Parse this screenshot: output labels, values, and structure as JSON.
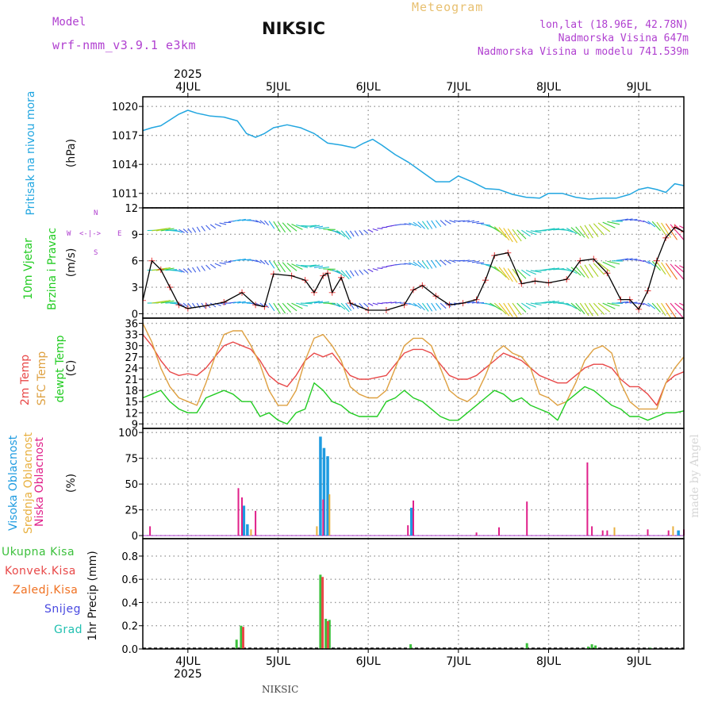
{
  "header": {
    "model_label": "Model",
    "model_name": "wrf-nmm_v3.9.1 e3km",
    "station": "NIKSIC",
    "meteogram_title": "Meteogram",
    "lonlat": "lon,lat (18.96E, 42.78N)",
    "elevation": "Nadmorska Visina 647m",
    "model_elevation": "Nadmorska Visina u modelu 741.539m",
    "footer_station": "NIKSIC",
    "watermark": "made by Angel"
  },
  "colors": {
    "pressure": "#22a6e0",
    "wind": "#22cc22",
    "temp2m": "#e84848",
    "sfc": "#dea040",
    "dewpt": "#22cc22",
    "cloud_high": "#1e9be0",
    "cloud_mid": "#e8b040",
    "cloud_low": "#e0208a",
    "precip_total": "#3cc03c",
    "precip_conv": "#e84848",
    "precip_frozen": "#f07020",
    "snow": "#4848e0",
    "hail": "#20c0b0",
    "model_purple": "#b040d0"
  },
  "time_axis": {
    "year": "2025",
    "day_labels": [
      "4JUL",
      "5JUL",
      "6JUL",
      "7JUL",
      "8JUL",
      "9JUL"
    ],
    "day_start": 3.5,
    "day_end": 9.5
  },
  "panels": {
    "pressure": {
      "title": "Pritisak na nivou mora",
      "unit": "(hPa)"
    },
    "wind": {
      "title1": "10m Vjetar",
      "title2": "Brzina i Pravac",
      "unit": "(m/s)",
      "compass": {
        "n": "N",
        "s": "S",
        "w": "W",
        "e": "E",
        "arrow": "<-|->"
      }
    },
    "temp": {
      "t2m": "2m Temp",
      "sfc": "SFC Temp",
      "dew": "dewpt Temp",
      "unit": "(C)"
    },
    "cloud": {
      "high": "Visoka Oblacnost",
      "mid": "Srednja Oblacnost",
      "low": "Niska Oblacnost",
      "unit": "(%)"
    },
    "precip": {
      "total": "Ukupna Kisa",
      "conv": "Konvek.Kisa",
      "frozen": "Zaledj.Kisa",
      "snow": "Snijeg",
      "hail": "Grad",
      "unit": "1hr Precip (mm)"
    }
  },
  "chart_data": [
    {
      "type": "line",
      "id": "pressure",
      "title": "Pritisak na nivou mora",
      "ylabel": "(hPa)",
      "ylim": [
        1009.5,
        1021
      ],
      "yticks": [
        1011,
        1014,
        1017,
        1020
      ],
      "x": [
        3.5,
        3.6,
        3.7,
        3.8,
        3.9,
        4.0,
        4.1,
        4.25,
        4.4,
        4.55,
        4.65,
        4.75,
        4.85,
        4.95,
        5.1,
        5.25,
        5.4,
        5.55,
        5.7,
        5.85,
        5.95,
        6.05,
        6.15,
        6.3,
        6.45,
        6.6,
        6.75,
        6.9,
        7.0,
        7.15,
        7.3,
        7.45,
        7.6,
        7.75,
        7.9,
        8.0,
        8.15,
        8.3,
        8.45,
        8.6,
        8.75,
        8.9,
        9.0,
        9.1,
        9.2,
        9.3,
        9.4,
        9.5
      ],
      "values": [
        1017.5,
        1017.8,
        1018.0,
        1018.6,
        1019.2,
        1019.6,
        1019.3,
        1019.0,
        1018.9,
        1018.5,
        1017.2,
        1016.8,
        1017.2,
        1017.8,
        1018.1,
        1017.8,
        1017.2,
        1016.2,
        1016.0,
        1015.7,
        1016.2,
        1016.6,
        1016.0,
        1015.0,
        1014.2,
        1013.2,
        1012.2,
        1012.2,
        1012.8,
        1012.2,
        1011.5,
        1011.4,
        1010.9,
        1010.6,
        1010.5,
        1011.0,
        1011.0,
        1010.6,
        1010.4,
        1010.5,
        1010.5,
        1010.9,
        1011.4,
        1011.6,
        1011.4,
        1011.1,
        1012.0,
        1011.8
      ]
    },
    {
      "type": "line",
      "id": "wind_speed",
      "title": "10m Vjetar Brzina i Pravac",
      "ylabel": "(m/s)",
      "ylim": [
        -0.5,
        12
      ],
      "yticks": [
        0,
        3,
        6,
        9,
        12
      ],
      "x": [
        3.5,
        3.6,
        3.7,
        3.8,
        3.9,
        4.0,
        4.2,
        4.4,
        4.6,
        4.75,
        4.85,
        4.95,
        5.15,
        5.3,
        5.4,
        5.5,
        5.55,
        5.6,
        5.7,
        5.8,
        6.0,
        6.2,
        6.4,
        6.5,
        6.6,
        6.75,
        6.9,
        7.05,
        7.2,
        7.3,
        7.4,
        7.55,
        7.7,
        7.85,
        8.0,
        8.2,
        8.35,
        8.5,
        8.65,
        8.8,
        8.9,
        9.0,
        9.1,
        9.2,
        9.3,
        9.4,
        9.5
      ],
      "values": [
        1.5,
        6.0,
        5.0,
        3.0,
        1.0,
        0.6,
        0.9,
        1.3,
        2.4,
        1.0,
        0.8,
        4.5,
        4.3,
        3.8,
        2.4,
        4.3,
        4.6,
        2.4,
        4.1,
        1.2,
        0.4,
        0.4,
        1.0,
        2.7,
        3.2,
        2.0,
        1.0,
        1.2,
        1.6,
        3.8,
        6.6,
        6.9,
        3.4,
        3.7,
        3.5,
        3.9,
        6.0,
        6.2,
        4.6,
        1.6,
        1.6,
        0.5,
        2.6,
        6.0,
        8.6,
        9.8,
        9.3
      ]
    },
    {
      "type": "line",
      "id": "temperature",
      "ylabel": "(C)",
      "ylim": [
        7.8,
        37.4
      ],
      "yticks": [
        9,
        12,
        15,
        18,
        21,
        24,
        27,
        30,
        33,
        36
      ],
      "x": [
        3.5,
        3.6,
        3.7,
        3.8,
        3.9,
        4.0,
        4.1,
        4.2,
        4.3,
        4.4,
        4.5,
        4.6,
        4.7,
        4.8,
        4.9,
        5.0,
        5.1,
        5.2,
        5.3,
        5.4,
        5.5,
        5.6,
        5.7,
        5.8,
        5.9,
        6.0,
        6.1,
        6.2,
        6.3,
        6.4,
        6.5,
        6.6,
        6.7,
        6.8,
        6.9,
        7.0,
        7.1,
        7.2,
        7.3,
        7.4,
        7.5,
        7.6,
        7.7,
        7.8,
        7.9,
        8.0,
        8.1,
        8.2,
        8.3,
        8.4,
        8.5,
        8.6,
        8.7,
        8.8,
        8.9,
        9.0,
        9.1,
        9.2,
        9.3,
        9.4,
        9.5
      ],
      "series": [
        {
          "name": "2m Temp",
          "values": [
            33,
            30,
            26,
            23,
            22,
            22.5,
            22,
            24,
            27,
            30,
            31,
            30,
            29,
            26,
            22,
            20,
            19,
            22,
            26,
            28,
            27,
            28,
            25,
            22,
            21,
            21,
            21.5,
            22,
            25,
            28,
            29,
            29,
            28,
            25,
            22,
            21,
            21,
            22,
            24,
            26,
            28,
            27,
            26,
            24,
            22,
            21,
            20,
            20,
            22,
            24,
            25,
            25,
            24,
            21,
            19,
            19,
            17,
            14,
            20,
            22,
            23
          ]
        },
        {
          "name": "SFC Temp",
          "values": [
            36,
            31,
            24,
            19,
            16,
            15,
            14,
            20,
            27,
            33,
            34,
            34,
            30,
            25,
            18,
            14,
            14,
            18,
            26,
            32,
            33,
            30,
            26,
            19,
            17,
            16,
            16,
            18,
            24,
            30,
            32,
            32,
            30,
            24,
            18,
            16,
            15,
            17,
            22,
            28,
            30,
            28,
            27,
            24,
            17,
            16,
            14,
            15,
            20,
            26,
            29,
            30,
            28,
            20,
            15,
            13,
            13,
            13,
            20,
            24,
            27
          ]
        },
        {
          "name": "dewpt Temp",
          "values": [
            16,
            17,
            18,
            15,
            13,
            12,
            12,
            16,
            17,
            18,
            17,
            15,
            15,
            11,
            12,
            10,
            9,
            12,
            13,
            20,
            18,
            15,
            14,
            12,
            11,
            11,
            11,
            15,
            16,
            18,
            16,
            15,
            13,
            11,
            10,
            10,
            12,
            14,
            16,
            18,
            17,
            15,
            16,
            14,
            13,
            12,
            10,
            15,
            17,
            19,
            18,
            16,
            14,
            13,
            11,
            11,
            10,
            11,
            12,
            12,
            12.5
          ]
        }
      ]
    },
    {
      "type": "bar",
      "id": "clouds",
      "ylabel": "(%)",
      "ylim": [
        -3,
        104
      ],
      "yticks": [
        0,
        25,
        50,
        75,
        100
      ],
      "series": [
        {
          "name": "Visoka Oblacnost",
          "x": [
            4.62,
            4.66,
            5.47,
            5.51,
            5.55,
            6.48,
            9.44
          ],
          "values": [
            29,
            11,
            96,
            85,
            77,
            27,
            5
          ]
        },
        {
          "name": "Srednja Oblacnost",
          "x": [
            4.7,
            5.43,
            5.57,
            8.73,
            9.38
          ],
          "values": [
            6,
            9,
            40,
            8,
            9
          ]
        },
        {
          "name": "Niska Oblacnost",
          "x": [
            3.58,
            4.56,
            4.6,
            4.75,
            5.5,
            6.44,
            6.5,
            7.2,
            7.45,
            7.76,
            8.43,
            8.48,
            8.6,
            8.65,
            9.1,
            9.33,
            9.5
          ],
          "values": [
            9,
            46,
            37,
            24,
            35,
            10,
            34,
            3,
            8,
            33,
            71,
            9,
            5,
            5,
            6,
            5,
            6
          ]
        }
      ]
    },
    {
      "type": "bar",
      "id": "precip",
      "ylabel": "1hr Precip (mm)",
      "ylim": [
        0,
        0.95
      ],
      "yticks": [
        0,
        0.2,
        0.4,
        0.6,
        0.8
      ],
      "series": [
        {
          "name": "Ukupna Kisa",
          "x": [
            4.54,
            4.59,
            5.47,
            5.53,
            5.57,
            6.47,
            7.76,
            8.44,
            8.48,
            8.52,
            9.13
          ],
          "values": [
            0.08,
            0.2,
            0.64,
            0.26,
            0.25,
            0.04,
            0.05,
            0.02,
            0.04,
            0.03,
            0.01
          ]
        },
        {
          "name": "Konvek.Kisa",
          "x": [
            4.6,
            5.48,
            5.54
          ],
          "values": [
            0.19,
            0.62,
            0.24
          ]
        }
      ]
    }
  ]
}
